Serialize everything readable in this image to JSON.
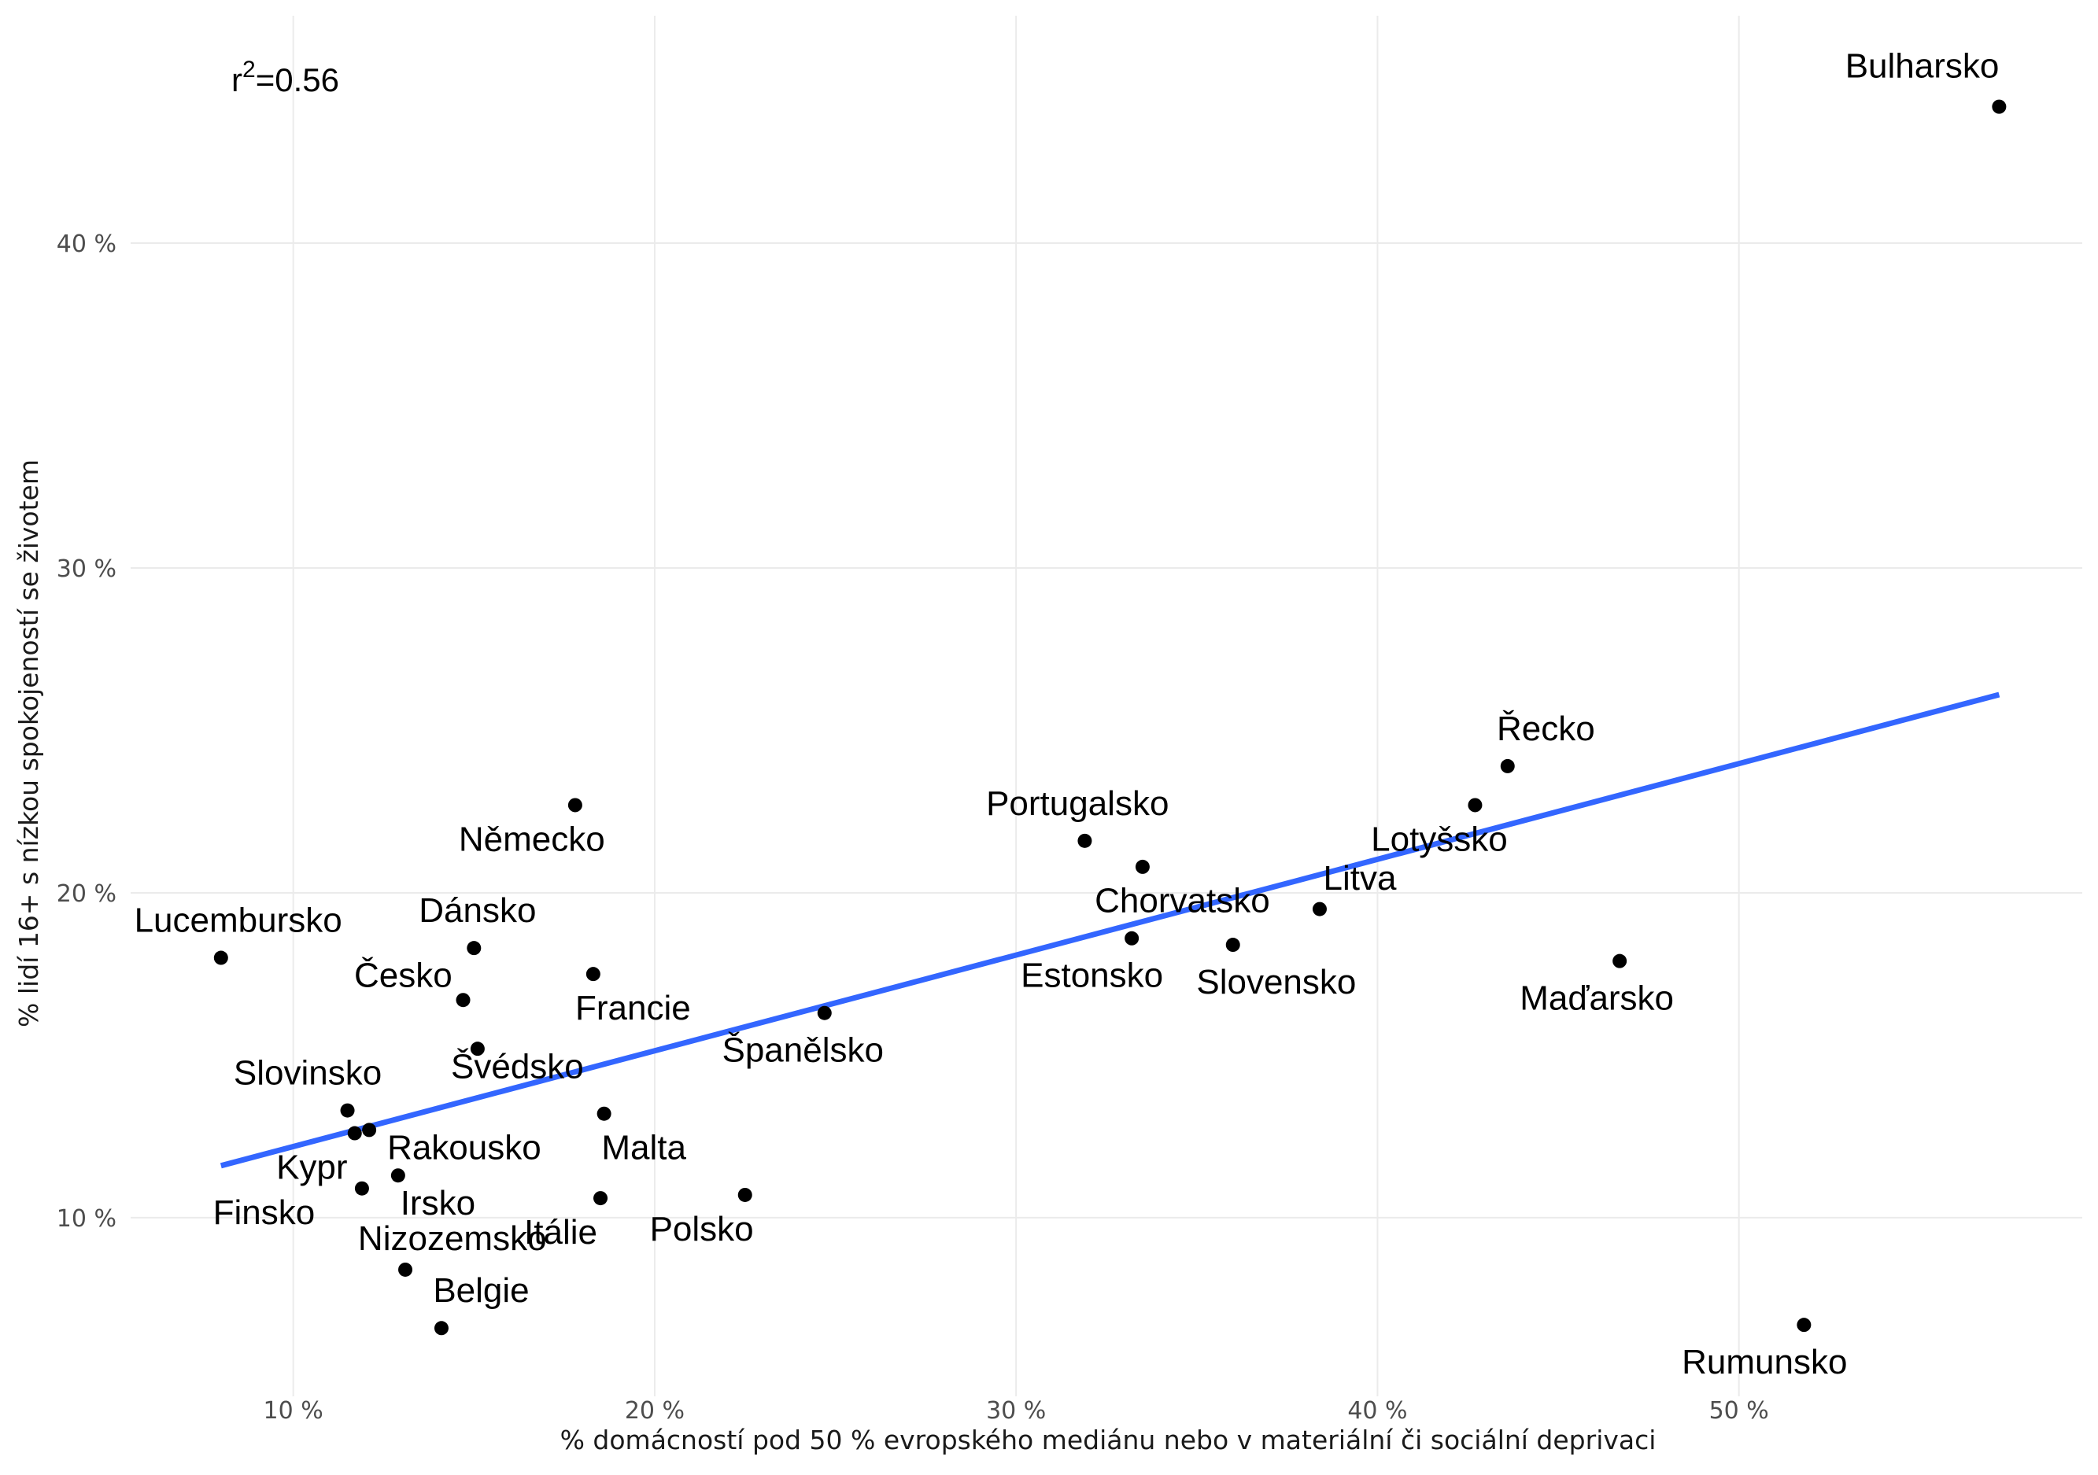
{
  "chart_data": {
    "type": "scatter",
    "xlabel": "% domácností pod 50 % evropského mediánu nebo v materiální či sociální deprivaci",
    "ylabel": "% lidí 16+ s nízkou spokojeností se životem",
    "xlim": [
      5.5,
      59.5
    ],
    "ylim": [
      4.5,
      47
    ],
    "x_ticks": [
      {
        "value": 10,
        "label": "10 %"
      },
      {
        "value": 20,
        "label": "20 %"
      },
      {
        "value": 30,
        "label": "30 %"
      },
      {
        "value": 40,
        "label": "40 %"
      },
      {
        "value": 50,
        "label": "50 %"
      }
    ],
    "y_ticks": [
      {
        "value": 10,
        "label": "10 %"
      },
      {
        "value": 20,
        "label": "20 %"
      },
      {
        "value": 30,
        "label": "30 %"
      },
      {
        "value": 40,
        "label": "40 %"
      }
    ],
    "annotation": {
      "prefix": "r",
      "sup": "2",
      "suffix": "=0.56"
    },
    "trend_line": {
      "x1": 8.0,
      "y1": 11.6,
      "x2": 57.2,
      "y2": 26.1,
      "color": "#3366FF"
    },
    "point_color": "#000000",
    "points": [
      {
        "label": "Bulharsko",
        "x": 57.2,
        "y": 44.2,
        "anchor": "end",
        "lx": 57.2,
        "ly": 45.1
      },
      {
        "label": "Řecko",
        "x": 43.6,
        "y": 23.9,
        "anchor": "start",
        "lx": 43.3,
        "ly": 24.7
      },
      {
        "label": "Lotyšsko",
        "x": 42.7,
        "y": 22.7,
        "anchor": "end",
        "lx": 43.6,
        "ly": 21.3
      },
      {
        "label": "Maďarsko",
        "x": 46.7,
        "y": 17.9,
        "anchor": "end",
        "lx": 48.2,
        "ly": 16.4
      },
      {
        "label": "Rumunsko",
        "x": 51.8,
        "y": 6.7,
        "anchor": "end",
        "lx": 53.0,
        "ly": 5.2
      },
      {
        "label": "Litva",
        "x": 38.4,
        "y": 19.5,
        "anchor": "start",
        "lx": 38.5,
        "ly": 20.1
      },
      {
        "label": "Slovensko",
        "x": 36.0,
        "y": 18.4,
        "anchor": "middle",
        "lx": 37.2,
        "ly": 16.9
      },
      {
        "label": "Chorvatsko",
        "x": 33.5,
        "y": 20.8,
        "anchor": "middle",
        "lx": 34.6,
        "ly": 19.4
      },
      {
        "label": "Estonsko",
        "x": 33.2,
        "y": 18.6,
        "anchor": "middle",
        "lx": 32.1,
        "ly": 17.1
      },
      {
        "label": "Portugalsko",
        "x": 31.9,
        "y": 21.6,
        "anchor": "middle",
        "lx": 31.7,
        "ly": 22.4
      },
      {
        "label": "Španělsko",
        "x": 24.7,
        "y": 16.3,
        "anchor": "middle",
        "lx": 24.1,
        "ly": 14.8
      },
      {
        "label": "Polsko",
        "x": 22.5,
        "y": 10.7,
        "anchor": "middle",
        "lx": 21.3,
        "ly": 9.3
      },
      {
        "label": "Itálie",
        "x": 18.5,
        "y": 10.6,
        "anchor": "middle",
        "lx": 17.4,
        "ly": 9.2
      },
      {
        "label": "Malta",
        "x": 18.6,
        "y": 13.2,
        "anchor": "middle",
        "lx": 19.7,
        "ly": 11.8
      },
      {
        "label": "Francie",
        "x": 18.3,
        "y": 17.5,
        "anchor": "middle",
        "lx": 19.4,
        "ly": 16.1
      },
      {
        "label": "Německo",
        "x": 17.8,
        "y": 22.7,
        "anchor": "middle",
        "lx": 16.6,
        "ly": 21.3
      },
      {
        "label": "Dánsko",
        "x": 15.0,
        "y": 18.3,
        "anchor": "middle",
        "lx": 15.1,
        "ly": 19.1
      },
      {
        "label": "Česko",
        "x": 14.7,
        "y": 16.7,
        "anchor": "end",
        "lx": 14.4,
        "ly": 17.1
      },
      {
        "label": "Švédsko",
        "x": 15.1,
        "y": 15.2,
        "anchor": "middle",
        "lx": 16.2,
        "ly": 14.3
      },
      {
        "label": "Lucembursko",
        "x": 8.0,
        "y": 18.0,
        "anchor": "start",
        "lx": 5.6,
        "ly": 18.8
      },
      {
        "label": "Slovinsko",
        "x": 11.5,
        "y": 13.3,
        "anchor": "middle",
        "lx": 10.4,
        "ly": 14.1
      },
      {
        "label": "Rakousko",
        "x": 12.1,
        "y": 12.7,
        "anchor": "start",
        "lx": 12.6,
        "ly": 11.8
      },
      {
        "label": "Kypr",
        "x": 11.7,
        "y": 12.6,
        "anchor": "end",
        "lx": 11.5,
        "ly": 11.2
      },
      {
        "label": "Irsko",
        "x": 12.9,
        "y": 11.3,
        "anchor": "middle",
        "lx": 14.0,
        "ly": 10.1
      },
      {
        "label": "Finsko",
        "x": 11.9,
        "y": 10.9,
        "anchor": "end",
        "lx": 10.6,
        "ly": 9.8
      },
      {
        "label": "Nizozemsko",
        "x": 13.1,
        "y": 8.4,
        "anchor": "middle",
        "lx": 14.4,
        "ly": 9.0
      },
      {
        "label": "Belgie",
        "x": 14.1,
        "y": 6.6,
        "anchor": "middle",
        "lx": 15.2,
        "ly": 7.4
      }
    ]
  }
}
